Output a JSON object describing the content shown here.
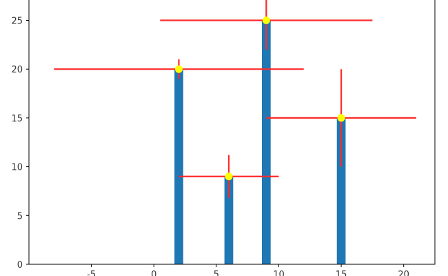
{
  "chart_data": {
    "type": "bar",
    "title": "",
    "xlabel": "",
    "ylabel": "",
    "grid": false,
    "xlim": [
      -10,
      22.5
    ],
    "ylim": [
      0,
      28.5
    ],
    "x_ticks": [
      -5,
      0,
      5,
      10,
      15,
      20
    ],
    "y_ticks": [
      0,
      5,
      10,
      15,
      20,
      25
    ],
    "bar_color": "#1f77b4",
    "errorbar_color": "#ff2a2a",
    "marker_color": "#ffff00",
    "bar_width": 0.7,
    "points": [
      {
        "x": 2,
        "y": 20,
        "xerr": 10,
        "yerr": 1
      },
      {
        "x": 6,
        "y": 9,
        "xerr": 4,
        "yerr": 2.2
      },
      {
        "x": 9,
        "y": 25,
        "xerr": 8.5,
        "yerr": 3
      },
      {
        "x": 15,
        "y": 15,
        "xerr": 6,
        "yerr": 5
      }
    ]
  }
}
